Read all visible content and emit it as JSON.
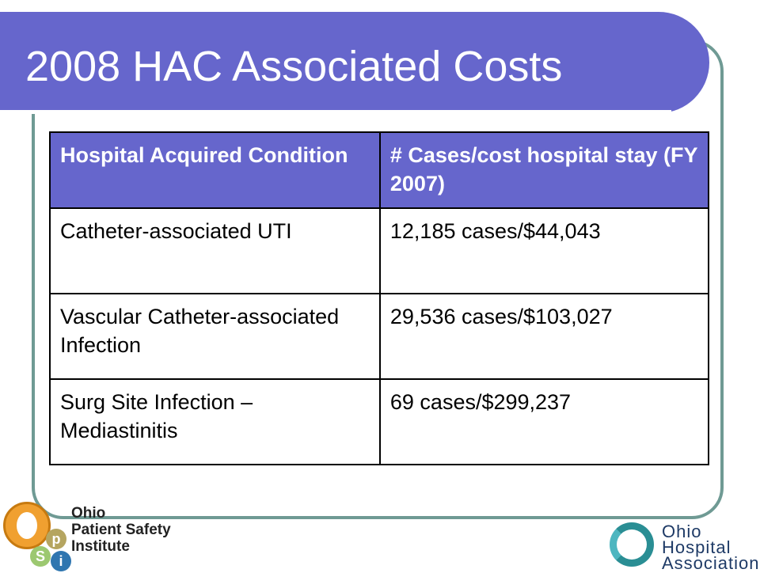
{
  "slide": {
    "title": "2008 HAC Associated Costs"
  },
  "table": {
    "headers": [
      "Hospital Acquired Condition",
      "# Cases/cost hospital stay (FY 2007)"
    ],
    "rows": [
      [
        "Catheter-associated UTI",
        "12,185 cases/$44,043"
      ],
      [
        "Vascular Catheter-associated Infection",
        "29,536 cases/$103,027"
      ],
      [
        "Surg Site Infection – Mediastinitis",
        "69 cases/$299,237"
      ]
    ]
  },
  "logos": {
    "opsi": {
      "letters": [
        "O",
        "p",
        "S",
        "i"
      ],
      "line1": "Ohio",
      "line2": "Patient Safety",
      "line3": "Institute"
    },
    "oha": {
      "line1": "Ohio",
      "line2": "Hospital",
      "line3": "Association"
    }
  },
  "colors": {
    "title_bar": "#6666cc",
    "frame": "#6f9a94",
    "header_fill": "#6666cc"
  }
}
